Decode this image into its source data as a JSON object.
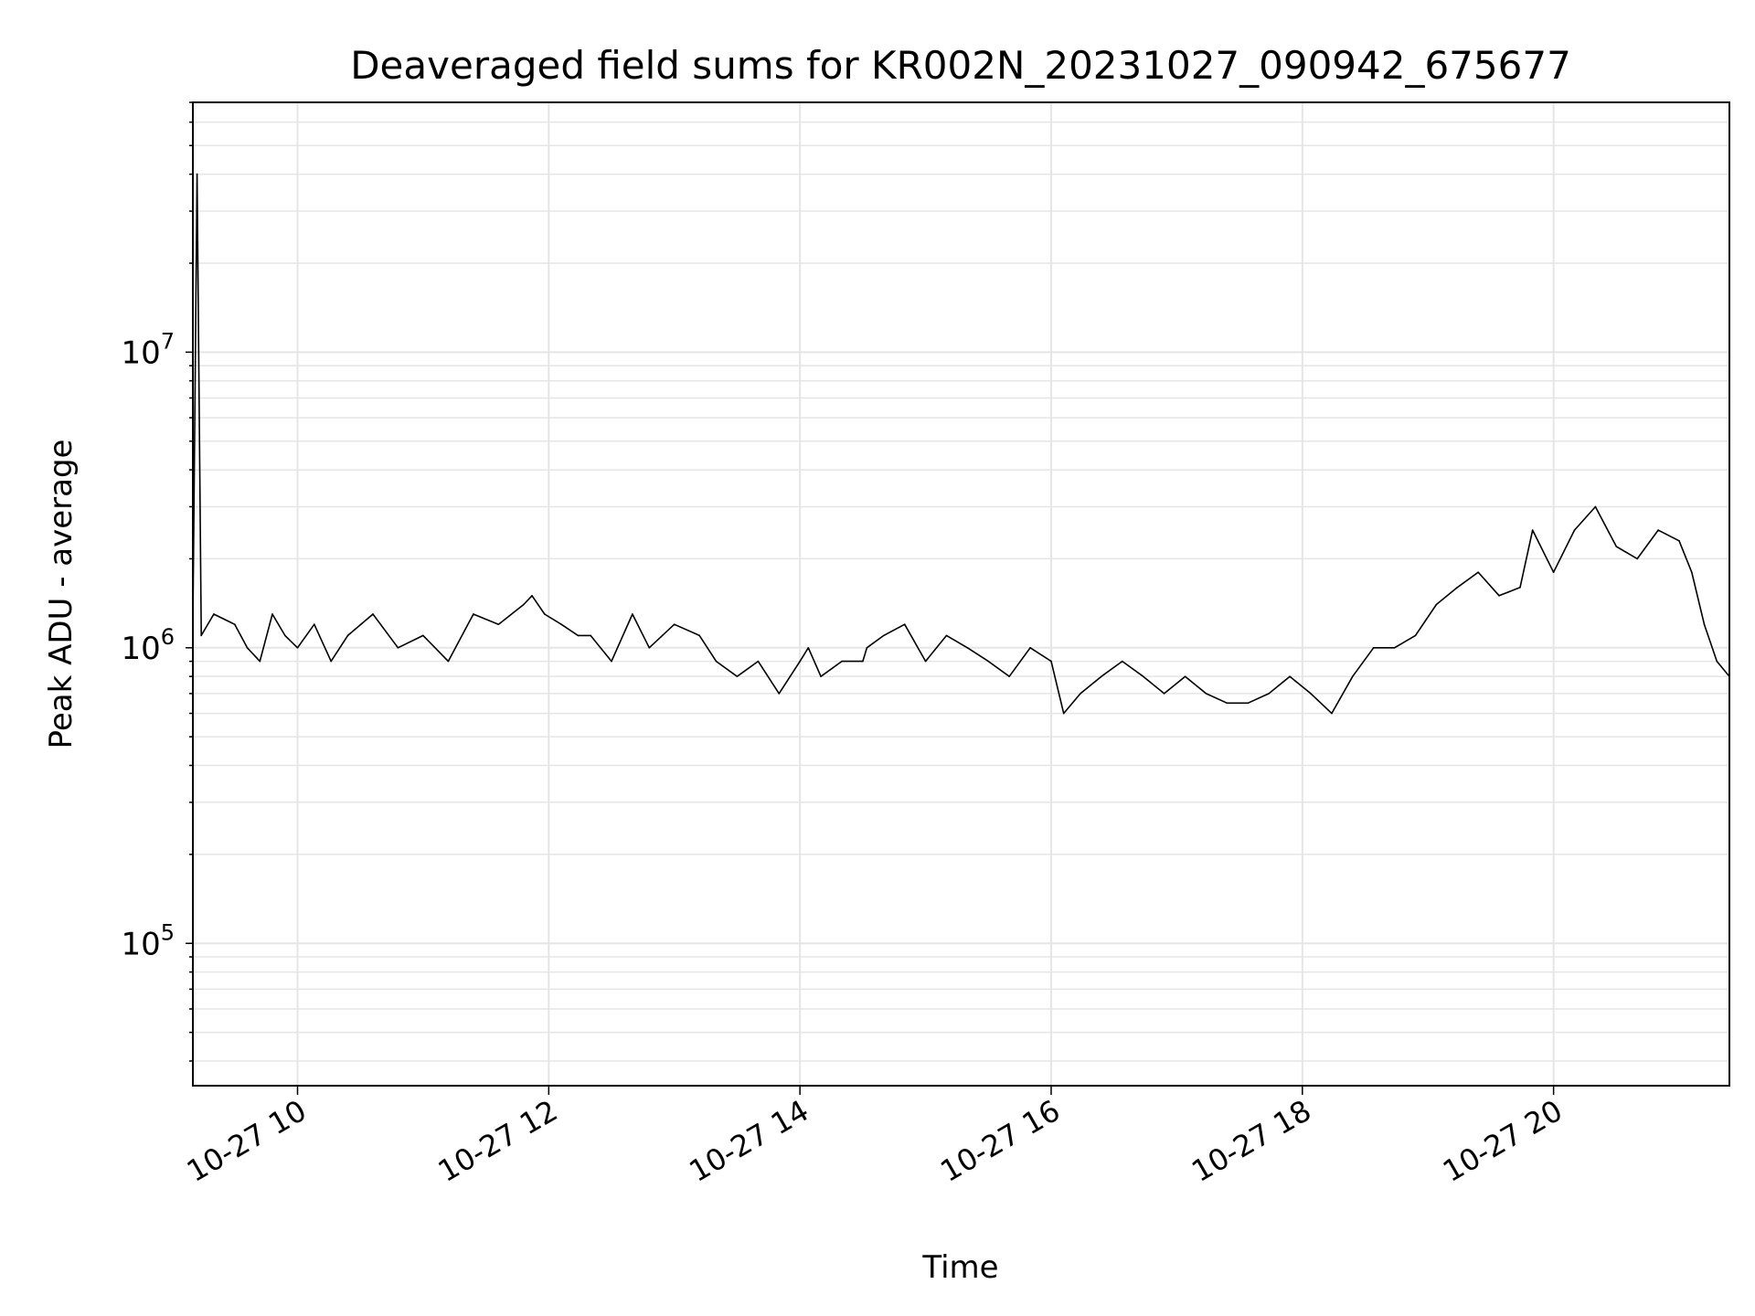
{
  "chart_data": {
    "type": "line",
    "title": "Deaveraged field sums for KR002N_20231027_090942_675677",
    "xlabel": "Time",
    "ylabel": "Peak ADU - average",
    "yscale": "log",
    "ylim": [
      33000,
      70000000
    ],
    "xlim": [
      "2023-10-27T09:10:00",
      "2023-10-27T21:24:00"
    ],
    "x_ticks": [
      {
        "time": "2023-10-27T10:00:00",
        "label": "10-27 10"
      },
      {
        "time": "2023-10-27T12:00:00",
        "label": "10-27 12"
      },
      {
        "time": "2023-10-27T14:00:00",
        "label": "10-27 14"
      },
      {
        "time": "2023-10-27T16:00:00",
        "label": "10-27 16"
      },
      {
        "time": "2023-10-27T18:00:00",
        "label": "10-27 18"
      },
      {
        "time": "2023-10-27T20:00:00",
        "label": "10-27 20"
      }
    ],
    "y_ticks": [
      {
        "value": 100000,
        "base": "10",
        "exp": "5"
      },
      {
        "value": 1000000,
        "base": "10",
        "exp": "6"
      },
      {
        "value": 10000000,
        "base": "10",
        "exp": "7"
      }
    ],
    "grid": true,
    "line_color": "#000000",
    "grid_color": "#e5e5e5",
    "series": [
      {
        "x": [
          "2023-10-27T09:10:00",
          "2023-10-27T09:12:00",
          "2023-10-27T09:14:00",
          "2023-10-27T09:20:00",
          "2023-10-27T09:30:00",
          "2023-10-27T09:36:00",
          "2023-10-27T09:42:00",
          "2023-10-27T09:48:00",
          "2023-10-27T09:54:00",
          "2023-10-27T10:00:00",
          "2023-10-27T10:08:00",
          "2023-10-27T10:16:00",
          "2023-10-27T10:24:00",
          "2023-10-27T10:36:00",
          "2023-10-27T10:48:00",
          "2023-10-27T11:00:00",
          "2023-10-27T11:12:00",
          "2023-10-27T11:24:00",
          "2023-10-27T11:36:00",
          "2023-10-27T11:48:00",
          "2023-10-27T11:52:00",
          "2023-10-27T11:58:00",
          "2023-10-27T12:06:00",
          "2023-10-27T12:14:00",
          "2023-10-27T12:20:00",
          "2023-10-27T12:30:00",
          "2023-10-27T12:40:00",
          "2023-10-27T12:48:00",
          "2023-10-27T13:00:00",
          "2023-10-27T13:12:00",
          "2023-10-27T13:20:00",
          "2023-10-27T13:30:00",
          "2023-10-27T13:40:00",
          "2023-10-27T13:50:00",
          "2023-10-27T14:00:00",
          "2023-10-27T14:04:00",
          "2023-10-27T14:10:00",
          "2023-10-27T14:20:00",
          "2023-10-27T14:30:00",
          "2023-10-27T14:32:00",
          "2023-10-27T14:40:00",
          "2023-10-27T14:50:00",
          "2023-10-27T15:00:00",
          "2023-10-27T15:10:00",
          "2023-10-27T15:20:00",
          "2023-10-27T15:30:00",
          "2023-10-27T15:40:00",
          "2023-10-27T15:50:00",
          "2023-10-27T16:00:00",
          "2023-10-27T16:06:00",
          "2023-10-27T16:14:00",
          "2023-10-27T16:24:00",
          "2023-10-27T16:34:00",
          "2023-10-27T16:44:00",
          "2023-10-27T16:54:00",
          "2023-10-27T17:04:00",
          "2023-10-27T17:14:00",
          "2023-10-27T17:24:00",
          "2023-10-27T17:34:00",
          "2023-10-27T17:44:00",
          "2023-10-27T17:54:00",
          "2023-10-27T18:04:00",
          "2023-10-27T18:14:00",
          "2023-10-27T18:24:00",
          "2023-10-27T18:34:00",
          "2023-10-27T18:44:00",
          "2023-10-27T18:54:00",
          "2023-10-27T19:04:00",
          "2023-10-27T19:14:00",
          "2023-10-27T19:24:00",
          "2023-10-27T19:34:00",
          "2023-10-27T19:44:00",
          "2023-10-27T19:50:00",
          "2023-10-27T20:00:00",
          "2023-10-27T20:10:00",
          "2023-10-27T20:20:00",
          "2023-10-27T20:30:00",
          "2023-10-27T20:40:00",
          "2023-10-27T20:50:00",
          "2023-10-27T21:00:00",
          "2023-10-27T21:06:00",
          "2023-10-27T21:12:00",
          "2023-10-27T21:18:00",
          "2023-10-27T21:24:00"
        ],
        "y": [
          1200000,
          40000000,
          1100000,
          1300000,
          1200000,
          1000000,
          900000,
          1300000,
          1100000,
          1000000,
          1200000,
          900000,
          1100000,
          1300000,
          1000000,
          1100000,
          900000,
          1300000,
          1200000,
          1400000,
          1500000,
          1300000,
          1200000,
          1100000,
          1100000,
          900000,
          1300000,
          1000000,
          1200000,
          1100000,
          900000,
          800000,
          900000,
          700000,
          900000,
          1000000,
          800000,
          900000,
          900000,
          1000000,
          1100000,
          1200000,
          900000,
          1100000,
          1000000,
          900000,
          800000,
          1000000,
          900000,
          600000,
          700000,
          800000,
          900000,
          800000,
          700000,
          800000,
          700000,
          650000,
          650000,
          700000,
          800000,
          700000,
          600000,
          800000,
          1000000,
          1000000,
          1100000,
          1400000,
          1600000,
          1800000,
          1500000,
          1600000,
          2500000,
          1800000,
          2500000,
          3000000,
          2200000,
          2000000,
          2500000,
          2300000,
          1800000,
          1200000,
          900000,
          800000
        ]
      }
    ]
  }
}
